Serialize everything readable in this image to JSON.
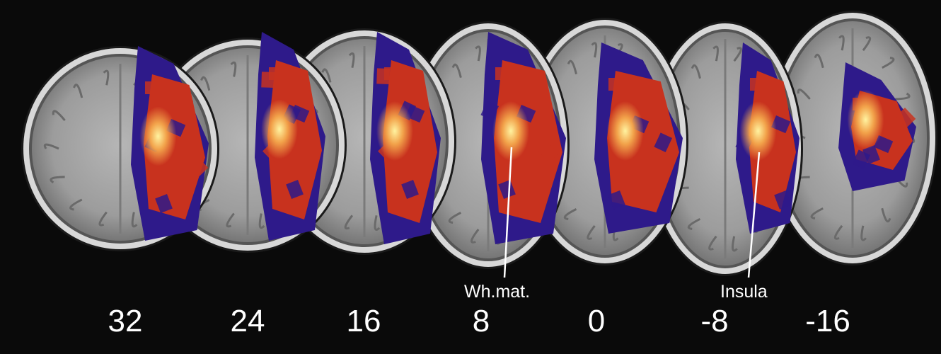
{
  "figure": {
    "background": "#0a0a0a",
    "colors": {
      "skull": "#d8d8d8",
      "brain": "#a9a9a9",
      "lesion_low": "#2e1a8a",
      "lesion_mid": "#c8321e",
      "lesion_high": "#f2a24a",
      "lesion_peak": "#fff3a0"
    },
    "slices": [
      {
        "z_label": "32"
      },
      {
        "z_label": "24"
      },
      {
        "z_label": "16"
      },
      {
        "z_label": "8"
      },
      {
        "z_label": "0"
      },
      {
        "z_label": "-8"
      },
      {
        "z_label": "-16"
      }
    ],
    "annotations": [
      {
        "text": "Wh.mat."
      },
      {
        "text": "Insula"
      }
    ]
  }
}
